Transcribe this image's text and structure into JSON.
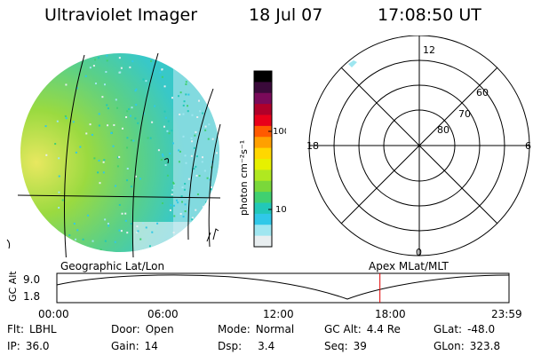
{
  "header": {
    "title": "Ultraviolet Imager",
    "date": "18 Jul 07",
    "time": "17:08:50 UT"
  },
  "colorbar": {
    "unit_label": "photon cm⁻²s⁻¹",
    "ticks": [
      "100",
      "10"
    ],
    "colors": [
      "#000000",
      "#3a0a3a",
      "#7a0a5a",
      "#b0002a",
      "#e8001a",
      "#ff5a00",
      "#ffa000",
      "#ffd700",
      "#e6f000",
      "#b0e820",
      "#7ad83a",
      "#40d070",
      "#22c8b8",
      "#30c8e8",
      "#a0e6f0",
      "#e8eef0"
    ]
  },
  "polar": {
    "mlt_labels": {
      "top": "12",
      "left": "18",
      "right": "6",
      "bottom": "0"
    },
    "lat_labels": [
      "60",
      "70",
      "80"
    ]
  },
  "timeline": {
    "left_label": "Geographic Lat/Lon",
    "right_label": "Apex MLat/MLT",
    "axis_label": "GC Alt",
    "y_ticks": [
      "9.0",
      "1.8"
    ],
    "x_ticks": [
      "00:00",
      "06:00",
      "12:00",
      "18:00",
      "23:59"
    ],
    "marker_time_fraction": 0.7145,
    "marker_color": "#e00000"
  },
  "info": {
    "flt": {
      "label": "Flt:",
      "value": "LBHL"
    },
    "ip": {
      "label": "IP:",
      "value": "36.0"
    },
    "door": {
      "label": "Door:",
      "value": "Open"
    },
    "gain": {
      "label": "Gain:",
      "value": "14"
    },
    "mode": {
      "label": "Mode:",
      "value": "Normal"
    },
    "dsp": {
      "label": "Dsp:",
      "value": "3.4"
    },
    "gcalt": {
      "label": "GC Alt:",
      "value": "4.4 Re"
    },
    "seq": {
      "label": "Seq:",
      "value": "39"
    },
    "glat": {
      "label": "GLat:",
      "value": "-48.0"
    },
    "glon": {
      "label": "GLon:",
      "value": "323.8"
    }
  }
}
